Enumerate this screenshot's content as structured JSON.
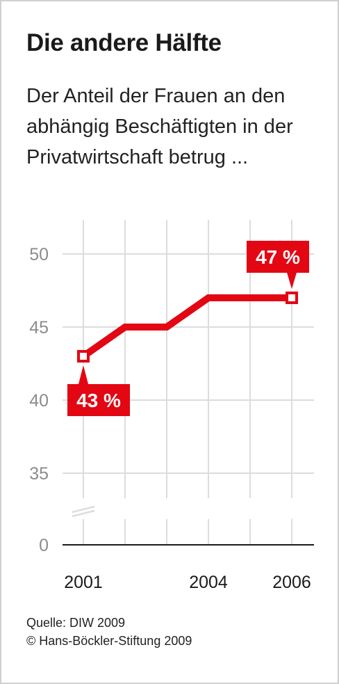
{
  "title": "Die andere Hälfte",
  "subtitle": "Der Anteil der Frauen an den abhängig Beschäftigten in der Privatwirtschaft betrug ...",
  "source": "Quelle: DIW 2009",
  "copyright": "© Hans-Böckler-Stiftung 2009",
  "colors": {
    "accent": "#e30613",
    "grid": "#dcdcdc",
    "axis": "#1a1a1a",
    "tick_text": "#8c8c8c"
  },
  "chart_data": {
    "type": "line",
    "x": [
      2001,
      2002,
      2003,
      2004,
      2005,
      2006
    ],
    "series": [
      {
        "values": [
          43,
          45,
          45,
          47,
          47,
          47
        ]
      }
    ],
    "y_ticks": [
      0,
      35,
      40,
      45,
      50
    ],
    "x_tick_labels": [
      "2001",
      "2004",
      "2006"
    ],
    "y_axis_break": true,
    "ylim": [
      0,
      50
    ],
    "xlim": [
      2001,
      2006
    ],
    "grid": true,
    "annotations": [
      {
        "x": 2001,
        "y": 43,
        "label": "43 %"
      },
      {
        "x": 2006,
        "y": 47,
        "label": "47 %"
      }
    ]
  }
}
